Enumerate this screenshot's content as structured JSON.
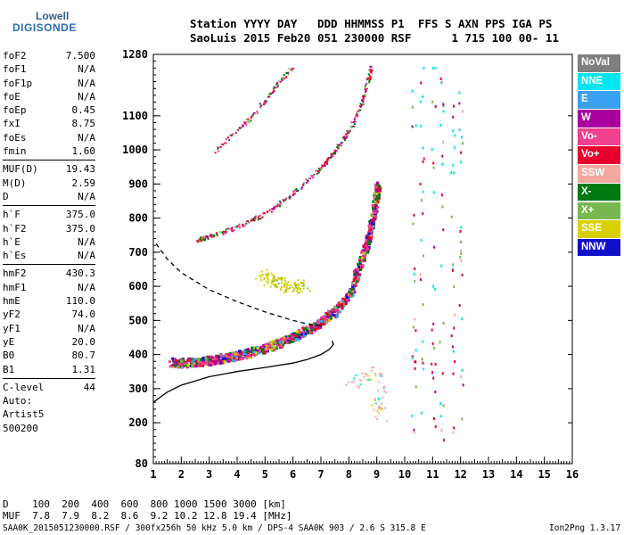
{
  "logo": {
    "line1": "Lowell",
    "line2": "DIGISONDE"
  },
  "header": {
    "line1": "Station YYYY DAY   DDD HHMMSS P1  FFS S AXN PPS IGA PS",
    "line2": "SaoLuis 2015 Feb20 051 230000 RSF      1 715 100 00- 11"
  },
  "params": [
    {
      "k": "foF2",
      "v": "7.500"
    },
    {
      "k": "foF1",
      "v": "N/A"
    },
    {
      "k": "foF1p",
      "v": "N/A"
    },
    {
      "k": "foE",
      "v": "N/A"
    },
    {
      "k": "foEp",
      "v": "0.45"
    },
    {
      "k": "fxI",
      "v": "8.75"
    },
    {
      "k": "foEs",
      "v": "N/A"
    },
    {
      "k": "fmin",
      "v": "1.60"
    },
    {
      "k": "MUF(D)",
      "v": "19.43"
    },
    {
      "k": "M(D)",
      "v": "2.59"
    },
    {
      "k": "D",
      "v": "N/A"
    },
    {
      "k": "h`F",
      "v": "375.0"
    },
    {
      "k": "h`F2",
      "v": "375.0"
    },
    {
      "k": "h`E",
      "v": "N/A"
    },
    {
      "k": "h`Es",
      "v": "N/A"
    },
    {
      "k": "hmF2",
      "v": "430.3"
    },
    {
      "k": "hmF1",
      "v": "N/A"
    },
    {
      "k": "hmE",
      "v": "110.0"
    },
    {
      "k": "yF2",
      "v": "74.0"
    },
    {
      "k": "yF1",
      "v": "N/A"
    },
    {
      "k": "yE",
      "v": "20.0"
    },
    {
      "k": "B0",
      "v": "80.7"
    },
    {
      "k": "B1",
      "v": "1.31"
    },
    {
      "k": "C-level",
      "v": "44"
    }
  ],
  "auto": {
    "line1": "Auto:",
    "line2": "Artist5",
    "line3": "500200"
  },
  "legend": [
    {
      "label": "NoVal",
      "color": "#7f7f7f"
    },
    {
      "label": "NNE",
      "color": "#00e5ee"
    },
    {
      "label": "E",
      "color": "#3aa0f0"
    },
    {
      "label": "W",
      "color": "#a8009c"
    },
    {
      "label": "Vo-",
      "color": "#f04090"
    },
    {
      "label": "Vo+",
      "color": "#e8002c"
    },
    {
      "label": "SSW",
      "color": "#f4a8a0"
    },
    {
      "label": "X-",
      "color": "#007a10"
    },
    {
      "label": "X+",
      "color": "#78b850"
    },
    {
      "label": "SSE",
      "color": "#d8d000"
    },
    {
      "label": "NNW",
      "color": "#1010c8"
    }
  ],
  "dtable": {
    "row1": "D    100  200  400  600  800 1000 1500 3000 [km]",
    "row2": "MUF  7.8  7.9  8.2  8.6  9.2 10.2 12.8 19.4 [MHz]"
  },
  "footer": {
    "left": "SAA0K_2015051230000.RSF / 300fx256h 50 kHz 5.0 km / DPS-4 SAA0K 903 / 2.6 S 315.8 E",
    "right": "Ion2Png 1.3.17"
  },
  "chart_data": {
    "type": "scatter",
    "title": "",
    "xlabel": "",
    "ylabel": "",
    "xlim": [
      1,
      16
    ],
    "ylim": [
      80,
      1280
    ],
    "xticks": [
      "1",
      "2",
      "3",
      "4",
      "5",
      "6",
      "7",
      "8",
      "9",
      "10",
      "11",
      "12",
      "13",
      "14",
      "15",
      "16"
    ],
    "yticks": [
      "80",
      "200",
      "300",
      "400",
      "500",
      "600",
      "700",
      "800",
      "900",
      "1000",
      "1100",
      "1280"
    ],
    "profile_solid": [
      [
        1.0,
        260
      ],
      [
        1.5,
        290
      ],
      [
        2.0,
        310
      ],
      [
        3.0,
        335
      ],
      [
        4.0,
        350
      ],
      [
        5.0,
        362
      ],
      [
        6.0,
        375
      ],
      [
        6.5,
        385
      ],
      [
        7.0,
        400
      ],
      [
        7.3,
        415
      ],
      [
        7.45,
        430
      ],
      [
        7.4,
        440
      ]
    ],
    "profile_dashed": [
      [
        1.1,
        725
      ],
      [
        1.5,
        680
      ],
      [
        2.0,
        640
      ],
      [
        3.0,
        590
      ],
      [
        4.0,
        555
      ],
      [
        5.0,
        525
      ],
      [
        6.0,
        500
      ],
      [
        6.5,
        490
      ],
      [
        7.0,
        485
      ]
    ],
    "trace_main": [
      [
        1.6,
        380
      ],
      [
        2.0,
        378
      ],
      [
        2.5,
        380
      ],
      [
        3.0,
        385
      ],
      [
        3.5,
        393
      ],
      [
        4.0,
        400
      ],
      [
        4.5,
        410
      ],
      [
        5.0,
        422
      ],
      [
        5.5,
        437
      ],
      [
        6.0,
        455
      ],
      [
        6.5,
        475
      ],
      [
        7.0,
        500
      ],
      [
        7.5,
        530
      ],
      [
        8.0,
        580
      ],
      [
        8.3,
        650
      ],
      [
        8.6,
        720
      ],
      [
        8.8,
        790
      ],
      [
        8.95,
        860
      ],
      [
        9.0,
        900
      ]
    ],
    "trace_second": [
      [
        2.5,
        735
      ],
      [
        3.0,
        748
      ],
      [
        4.0,
        775
      ],
      [
        5.0,
        815
      ],
      [
        6.0,
        875
      ],
      [
        7.0,
        950
      ],
      [
        7.5,
        1000
      ],
      [
        8.0,
        1060
      ],
      [
        8.5,
        1150
      ],
      [
        8.8,
        1250
      ]
    ],
    "trace_third": [
      [
        3.2,
        1000
      ],
      [
        4.0,
        1060
      ],
      [
        4.5,
        1100
      ],
      [
        5.0,
        1150
      ],
      [
        5.5,
        1200
      ],
      [
        6.0,
        1250
      ]
    ],
    "patch_sse": [
      [
        4.8,
        640
      ],
      [
        5.2,
        620
      ],
      [
        5.6,
        610
      ],
      [
        6.0,
        600
      ],
      [
        6.4,
        605
      ]
    ],
    "patch_ssw": [
      [
        8.0,
        320
      ],
      [
        8.5,
        330
      ],
      [
        9.0,
        360
      ],
      [
        9.2,
        300
      ],
      [
        8.9,
        240
      ],
      [
        9.4,
        220
      ]
    ],
    "vertical_streaks": [
      10.3,
      10.6,
      11.0,
      11.3,
      11.7,
      12.0
    ],
    "legend_placement": "right"
  }
}
